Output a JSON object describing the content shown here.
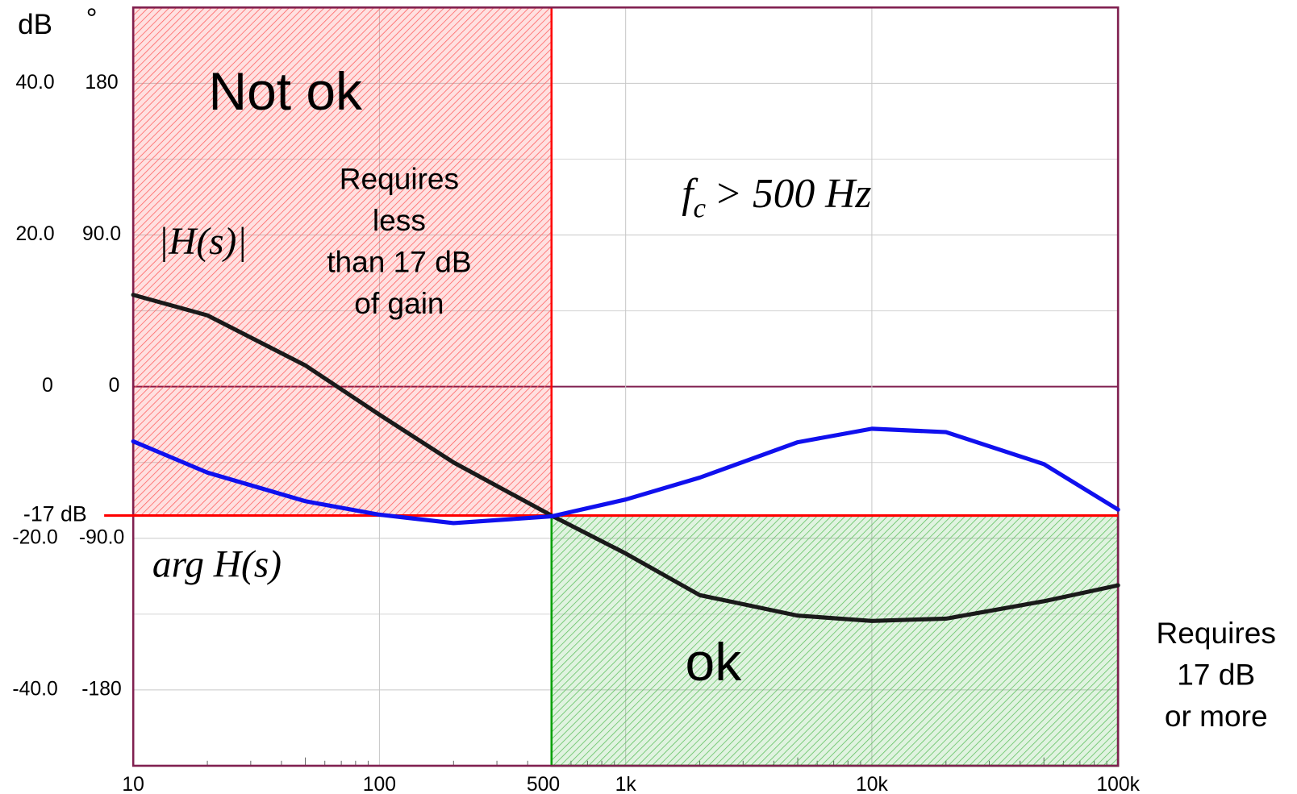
{
  "chart_data": {
    "type": "line",
    "x_label": "dB",
    "y2_label": "°",
    "x": [
      10,
      20,
      50,
      100,
      200,
      500,
      1000,
      2000,
      5000,
      10000,
      20000,
      50000,
      100000
    ],
    "xlim": [
      10,
      100000
    ],
    "xticks": [
      10,
      100,
      500,
      {
        "value": 1000,
        "label": "1k"
      },
      {
        "value": 10000,
        "label": "10k"
      },
      {
        "value": 100000,
        "label": "100k"
      }
    ],
    "xscale": "log",
    "ylim": [
      -50,
      50
    ],
    "yticks": [
      {
        "value": 40,
        "label": "40.0"
      },
      {
        "value": 20,
        "label": "20.0"
      },
      0,
      {
        "value": -20,
        "label": "-20.0"
      },
      {
        "value": -40,
        "label": "-40.0"
      }
    ],
    "y2lim": [
      -225,
      225
    ],
    "y2ticks": [
      180,
      {
        "value": 90,
        "label": "90.0"
      },
      0,
      {
        "value": -90,
        "label": "-90.0"
      },
      -180
    ],
    "grid": true,
    "series": [
      {
        "name": "|H(s)|",
        "color": "#1a1a1a",
        "values": [
          12.1,
          9.4,
          2.8,
          -3.7,
          -10,
          -17,
          -22,
          -27.5,
          -30.2,
          -30.9,
          -30.6,
          -28.3,
          -26.2
        ]
      },
      {
        "name": "arg H(s)",
        "color": "#1010ee",
        "axis": "y2",
        "values": [
          -32.5,
          -51,
          -68,
          -76,
          -81,
          -77,
          -67,
          -54,
          -33,
          -25,
          -27,
          -46,
          -73
        ]
      }
    ],
    "threshold": {
      "value": -17,
      "label": "-17 dB",
      "color": "#ff0000"
    },
    "regions": [
      {
        "name": "Not ok",
        "xlim": [
          10,
          500
        ],
        "side": "above",
        "color": "#ff0000",
        "note": [
          "Requires",
          "less",
          "than 17 dB",
          "of gain"
        ]
      },
      {
        "name": "ok",
        "xlim": [
          500,
          100000
        ],
        "side": "below",
        "color": "#00a000",
        "note": [
          "Requires",
          "17 dB",
          "or more"
        ]
      }
    ],
    "condition": {
      "base": "f",
      "sub": "c",
      "text": "> 500 Hz"
    }
  }
}
